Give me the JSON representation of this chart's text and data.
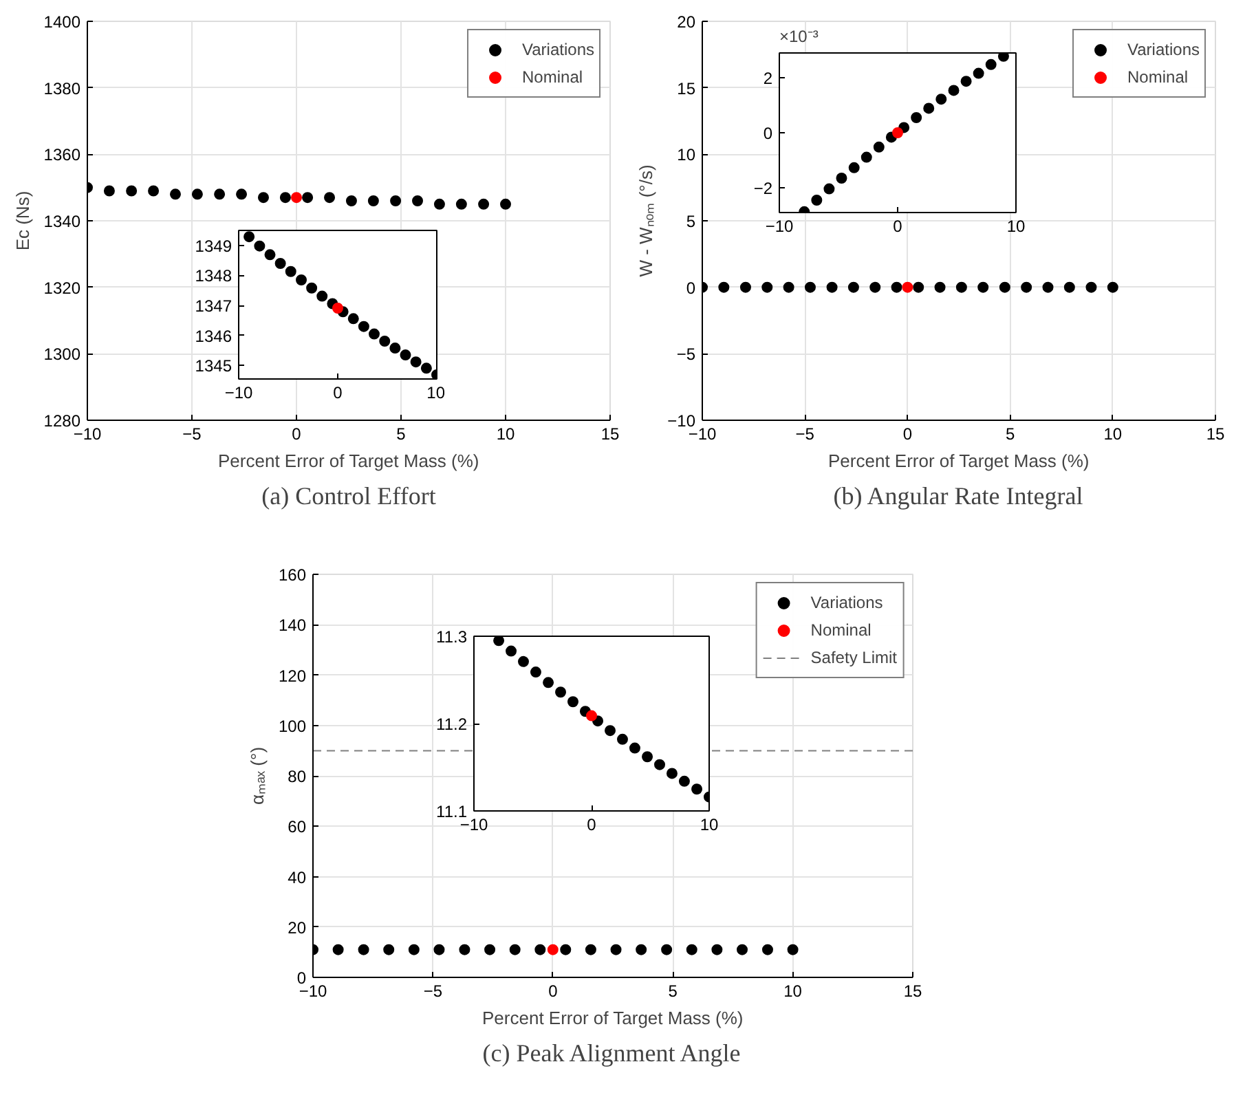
{
  "chart_data": [
    {
      "type": "scatter",
      "title": "(a) Control Effort",
      "xlabel": "Percent Error of Target Mass (%)",
      "ylabel": "Ec (Ns)",
      "xlim": [
        -10,
        15
      ],
      "xticks": [
        -10,
        -5,
        0,
        5,
        10,
        15
      ],
      "ylim": [
        1280,
        1400
      ],
      "yticks": [
        1280,
        1300,
        1320,
        1340,
        1360,
        1380,
        1400
      ],
      "grid": true,
      "legend": "top right",
      "marker": "circle",
      "series": [
        {
          "name": "Variations",
          "color": "#000000",
          "x": [
            -10,
            -8.95,
            -7.89,
            -6.84,
            -5.79,
            -4.74,
            -3.68,
            -2.63,
            -1.58,
            -0.53,
            0.53,
            1.58,
            2.63,
            3.68,
            4.74,
            5.79,
            6.84,
            7.89,
            8.95,
            10
          ],
          "values": [
            1350,
            1349,
            1349,
            1349,
            1348,
            1348,
            1348,
            1348,
            1347,
            1347,
            1347,
            1347,
            1346,
            1346,
            1346,
            1346,
            1345,
            1345,
            1345,
            1345
          ]
        },
        {
          "name": "Nominal",
          "color": "#ff0000",
          "x": [
            0
          ],
          "values": [
            1347
          ]
        }
      ]
    },
    {
      "type": "scatter",
      "xlim": [
        -10,
        10
      ],
      "xticks": [
        -10,
        0,
        10
      ],
      "ylim": [
        1344.55,
        1349.5
      ],
      "yticks": [
        1345,
        1346,
        1347,
        1348,
        1349
      ],
      "marker": "circle",
      "series": [
        {
          "color": "#000000",
          "x": [
            -8.95,
            -7.89,
            -6.84,
            -5.79,
            -4.74,
            -3.68,
            -2.63,
            -1.58,
            -0.53,
            0.53,
            1.58,
            2.63,
            3.68,
            4.74,
            5.79,
            6.84,
            7.89,
            8.95,
            10
          ],
          "values": [
            1349.29,
            1348.98,
            1348.69,
            1348.4,
            1348.13,
            1347.85,
            1347.58,
            1347.31,
            1347.06,
            1346.79,
            1346.56,
            1346.3,
            1346.05,
            1345.81,
            1345.58,
            1345.35,
            1345.12,
            1344.91,
            1344.69
          ]
        },
        {
          "color": "#ff0000",
          "x": [
            0
          ],
          "values": [
            1346.91
          ]
        }
      ]
    },
    {
      "type": "scatter",
      "title": "(b) Angular Rate Integral",
      "xlabel": "Percent Error of Target Mass (%)",
      "ylabel": "W - Wₙₒₘ (°/s)",
      "xlim": [
        -10,
        15
      ],
      "xticks": [
        -10,
        -5,
        0,
        5,
        10,
        15
      ],
      "ylim": [
        -10,
        20
      ],
      "yticks": [
        -10,
        -5,
        0,
        5,
        10,
        15,
        20
      ],
      "grid": true,
      "legend": "top right",
      "marker": "circle",
      "series": [
        {
          "name": "Variations",
          "color": "#000000",
          "x": [
            -10,
            -8.95,
            -7.89,
            -6.84,
            -5.79,
            -4.74,
            -3.68,
            -2.63,
            -1.58,
            -0.53,
            0.53,
            1.58,
            2.63,
            3.68,
            4.74,
            5.79,
            6.84,
            7.89,
            8.95,
            10
          ],
          "values": [
            0,
            0,
            0,
            0,
            0,
            0,
            0,
            0,
            0,
            0,
            0,
            0,
            0,
            0,
            0,
            0,
            0,
            0,
            0,
            0
          ]
        },
        {
          "name": "Nominal",
          "color": "#ff0000",
          "x": [
            0
          ],
          "values": [
            0
          ]
        }
      ]
    },
    {
      "type": "scatter",
      "annotations": [
        "×10⁻³"
      ],
      "xlim": [
        -10,
        10
      ],
      "xticks": [
        -10,
        0,
        10
      ],
      "ylim": [
        -2.9,
        2.9
      ],
      "yticks": [
        -2,
        0,
        2
      ],
      "marker": "circle",
      "series": [
        {
          "color": "#000000",
          "x": [
            -7.89,
            -6.84,
            -5.79,
            -4.74,
            -3.68,
            -2.63,
            -1.58,
            -0.53,
            0.53,
            1.58,
            2.63,
            3.68,
            4.74,
            5.79,
            6.84,
            7.89,
            8.95
          ],
          "values": [
            -2.87,
            -2.45,
            -2.04,
            -1.65,
            -1.27,
            -0.89,
            -0.52,
            -0.16,
            0.19,
            0.55,
            0.89,
            1.22,
            1.54,
            1.87,
            2.16,
            2.48,
            2.78
          ]
        },
        {
          "color": "#ff0000",
          "x": [
            0
          ],
          "values": [
            0
          ]
        }
      ]
    },
    {
      "type": "scatter",
      "title": "(c) Peak Alignment Angle",
      "xlabel": "Percent Error of Target Mass (%)",
      "ylabel": "αₘₐₓ (°)",
      "xlim": [
        -10,
        15
      ],
      "xticks": [
        -10,
        -5,
        0,
        5,
        10,
        15
      ],
      "ylim": [
        0,
        160
      ],
      "yticks": [
        0,
        20,
        40,
        60,
        80,
        100,
        120,
        140,
        160
      ],
      "grid": true,
      "legend": "top right",
      "marker": "circle",
      "ref_lines": [
        {
          "axis": "y",
          "value": 90,
          "label": "Safety Limit",
          "color": "#808080",
          "line_style": "dashed"
        }
      ],
      "series": [
        {
          "name": "Variations",
          "color": "#000000",
          "x": [
            -10,
            -8.95,
            -7.89,
            -6.84,
            -5.79,
            -4.74,
            -3.68,
            -2.63,
            -1.58,
            -0.53,
            0.53,
            1.58,
            2.63,
            3.68,
            4.74,
            5.79,
            6.84,
            7.89,
            8.95,
            10
          ],
          "values": [
            11,
            11,
            11,
            11,
            11,
            11,
            11,
            11,
            11,
            11,
            11,
            11,
            11,
            11,
            11,
            11,
            11,
            11,
            11,
            11
          ]
        },
        {
          "name": "Nominal",
          "color": "#ff0000",
          "x": [
            0
          ],
          "values": [
            11
          ]
        }
      ]
    },
    {
      "type": "scatter",
      "xlim": [
        -10,
        10
      ],
      "xticks": [
        -10,
        0,
        10
      ],
      "ylim": [
        11.1,
        11.3
      ],
      "yticks": [
        11.1,
        11.2,
        11.3
      ],
      "marker": "circle",
      "series": [
        {
          "color": "#000000",
          "x": [
            -7.89,
            -6.84,
            -5.79,
            -4.74,
            -3.68,
            -2.63,
            -1.58,
            -0.53,
            0.53,
            1.58,
            2.63,
            3.68,
            4.74,
            5.79,
            6.84,
            7.89,
            8.95,
            10
          ],
          "values": [
            11.295,
            11.283,
            11.271,
            11.259,
            11.247,
            11.236,
            11.225,
            11.214,
            11.203,
            11.192,
            11.182,
            11.172,
            11.162,
            11.153,
            11.143,
            11.134,
            11.125,
            11.116
          ]
        },
        {
          "color": "#ff0000",
          "x": [
            0
          ],
          "values": [
            11.209
          ]
        }
      ]
    }
  ]
}
